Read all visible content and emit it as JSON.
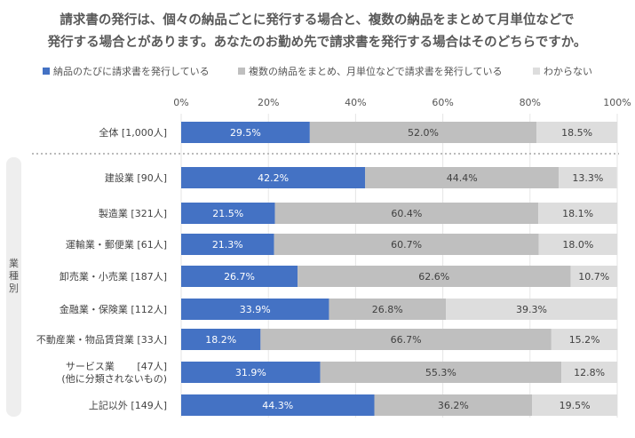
{
  "chart_data": {
    "type": "bar",
    "stacked": true,
    "orientation": "horizontal",
    "title_lines": [
      "請求書の発行は、個々の納品ごとに発行する場合と、複数の納品をまとめて月単位などで",
      "発行する場合とがあります。あなたのお勤め先で請求書を発行する場合はそのどちらですか。"
    ],
    "xlim": [
      0,
      100
    ],
    "x_ticks": [
      "0%",
      "20%",
      "40%",
      "60%",
      "80%",
      "100%"
    ],
    "legend_position": "top",
    "group_label": "業種別",
    "series": [
      {
        "name": "納品のたびに請求書を発行している",
        "color": "#4472c4",
        "label_color": "#ffffff"
      },
      {
        "name": "複数の納品をまとめ、月単位などで請求書を発行している",
        "color": "#bfbfbf",
        "label_color": "#404040"
      },
      {
        "name": "わからない",
        "color": "#dddddd",
        "label_color": "#404040"
      }
    ],
    "categories": [
      {
        "label": [
          "全体 [1,000人]"
        ],
        "values": [
          29.5,
          52.0,
          18.5
        ],
        "labels": [
          "29.5%",
          "52.0%",
          "18.5%"
        ]
      },
      {
        "label": [
          "建設業 [90人]"
        ],
        "values": [
          42.2,
          44.4,
          13.3
        ],
        "labels": [
          "42.2%",
          "44.4%",
          "13.3%"
        ]
      },
      {
        "label": [
          "製造業 [321人]"
        ],
        "values": [
          21.5,
          60.4,
          18.1
        ],
        "labels": [
          "21.5%",
          "60.4%",
          "18.1%"
        ]
      },
      {
        "label": [
          "運輸業・郵便業 [61人]"
        ],
        "values": [
          21.3,
          60.7,
          18.0
        ],
        "labels": [
          "21.3%",
          "60.7%",
          "18.0%"
        ]
      },
      {
        "label": [
          "卸売業・小売業 [187人]"
        ],
        "values": [
          26.7,
          62.6,
          10.7
        ],
        "labels": [
          "26.7%",
          "62.6%",
          "10.7%"
        ]
      },
      {
        "label": [
          "金融業・保険業 [112人]"
        ],
        "values": [
          33.9,
          26.8,
          39.3
        ],
        "labels": [
          "33.9%",
          "26.8%",
          "39.3%"
        ]
      },
      {
        "label": [
          "不動産業・物品賃貸業 [33人]"
        ],
        "values": [
          18.2,
          66.7,
          15.2
        ],
        "labels": [
          "18.2%",
          "66.7%",
          "15.2%"
        ]
      },
      {
        "label": [
          "サービス業　　 [47人]",
          "(他に分類されないもの)"
        ],
        "values": [
          31.9,
          55.3,
          12.8
        ],
        "labels": [
          "31.9%",
          "55.3%",
          "12.8%"
        ]
      },
      {
        "label": [
          "上記以外 [149人]"
        ],
        "values": [
          44.3,
          36.2,
          19.5
        ],
        "labels": [
          "44.3%",
          "36.2%",
          "19.5%"
        ]
      }
    ]
  }
}
